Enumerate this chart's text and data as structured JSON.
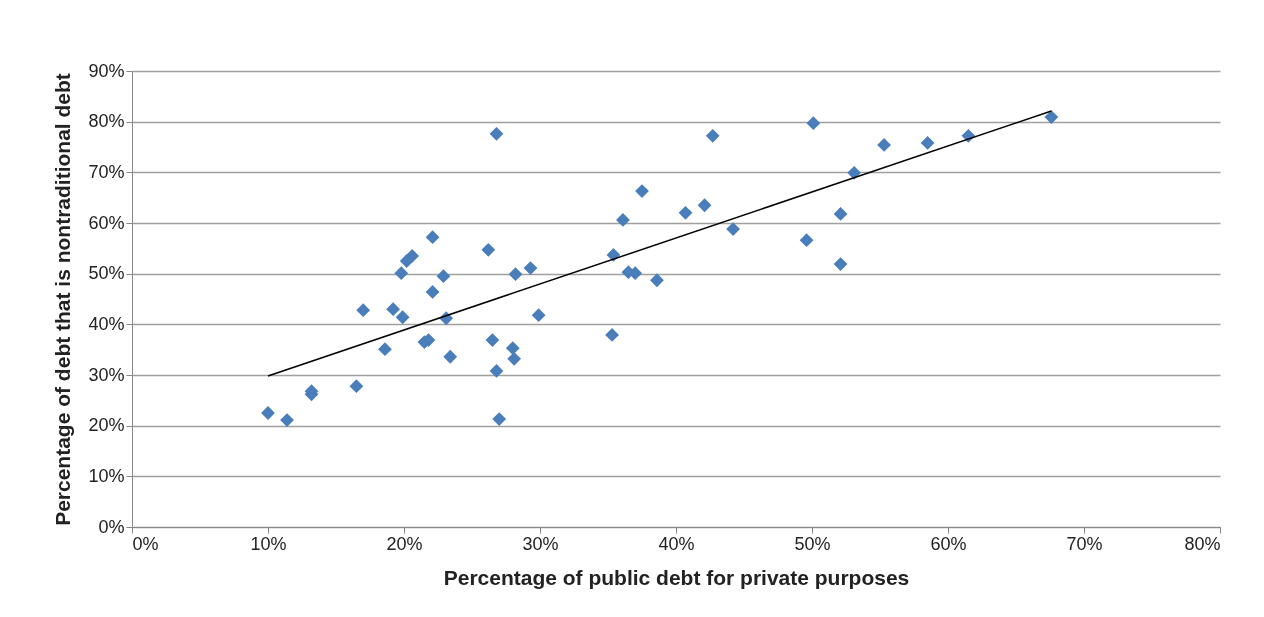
{
  "chart_data": {
    "type": "scatter",
    "xlabel": "Percentage of public debt for private purposes",
    "ylabel": "Percentage of debt that is nontraditional debt",
    "xlim": [
      0,
      80
    ],
    "ylim": [
      0,
      90
    ],
    "xticks": [
      {
        "value": 0,
        "label": "0%"
      },
      {
        "value": 10,
        "label": "10%"
      },
      {
        "value": 20,
        "label": "20%"
      },
      {
        "value": 30,
        "label": "30%"
      },
      {
        "value": 40,
        "label": "40%"
      },
      {
        "value": 50,
        "label": "50%"
      },
      {
        "value": 60,
        "label": "60%"
      },
      {
        "value": 70,
        "label": "70%"
      },
      {
        "value": 80,
        "label": "80%"
      }
    ],
    "yticks": [
      {
        "value": 0,
        "label": "0%"
      },
      {
        "value": 10,
        "label": "10%"
      },
      {
        "value": 20,
        "label": "20%"
      },
      {
        "value": 30,
        "label": "30%"
      },
      {
        "value": 40,
        "label": "40%"
      },
      {
        "value": 50,
        "label": "50%"
      },
      {
        "value": 60,
        "label": "60%"
      },
      {
        "value": 70,
        "label": "70%"
      },
      {
        "value": 80,
        "label": "80%"
      },
      {
        "value": 90,
        "label": "90%"
      }
    ],
    "grid": "y",
    "series": [
      {
        "color": "#4a7ebb",
        "marker": "diamond",
        "x": [
          10.0,
          11.4,
          13.2,
          13.2,
          16.5,
          17.0,
          18.6,
          19.2,
          19.8,
          19.9,
          20.2,
          20.6,
          22.1,
          22.1,
          22.9,
          23.1,
          21.5,
          21.8,
          23.4,
          26.2,
          26.8,
          26.5,
          26.8,
          27.0,
          28.0,
          28.1,
          28.2,
          29.3,
          29.9,
          35.3,
          35.4,
          36.1,
          36.5,
          37.0,
          37.5,
          38.6,
          40.7,
          42.1,
          42.7,
          44.2,
          49.6,
          50.1,
          52.1,
          52.1,
          53.1,
          55.3,
          58.5,
          61.5,
          67.6
        ],
        "values": [
          22.5,
          21.1,
          26.2,
          26.8,
          27.8,
          42.8,
          35.1,
          43.0,
          50.1,
          41.4,
          52.5,
          53.5,
          57.2,
          46.4,
          49.5,
          41.2,
          36.5,
          36.9,
          33.6,
          54.7,
          77.6,
          36.9,
          30.8,
          21.3,
          35.3,
          33.2,
          49.9,
          51.1,
          41.8,
          37.9,
          53.7,
          60.6,
          50.3,
          50.1,
          66.3,
          48.7,
          62.0,
          63.5,
          77.2,
          58.8,
          56.6,
          79.7,
          61.8,
          51.9,
          69.9,
          75.4,
          75.8,
          77.2,
          80.9
        ]
      },
      {
        "type": "line",
        "color": "#000000",
        "marker": "none",
        "x": [
          10.0,
          67.6
        ],
        "values": [
          29.8,
          82.1
        ]
      }
    ]
  }
}
